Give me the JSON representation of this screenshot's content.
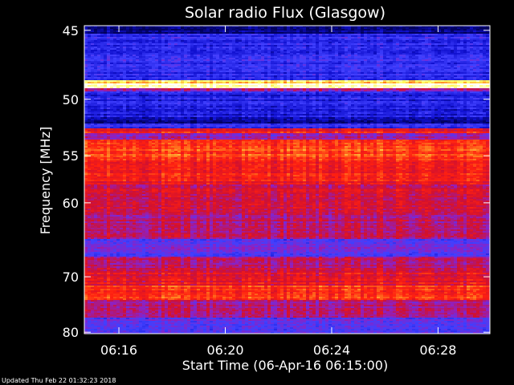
{
  "chart_data": {
    "type": "heatmap",
    "title": "Solar radio Flux (Glasgow)",
    "xlabel": "Start Time (06-Apr-16 06:15:00)",
    "ylabel": "Frequency [MHz]",
    "x_ticks": [
      "06:16",
      "06:20",
      "06:24",
      "06:28"
    ],
    "x_tick_minutes": [
      16,
      20,
      24,
      28
    ],
    "xlim_minutes": [
      14.7,
      29.95
    ],
    "y_ticks": [
      45,
      50,
      55,
      60,
      70,
      80
    ],
    "ylim": [
      44.7,
      80.3
    ],
    "y_scale": "reciprocal",
    "colormap": [
      "#00005a",
      "#1010d0",
      "#4040ff",
      "#9020c0",
      "#d01030",
      "#ff2010",
      "#ff8020",
      "#ffff60",
      "#ffffff"
    ],
    "bands": [
      {
        "from": 44.7,
        "to": 45.2,
        "level": 0.05
      },
      {
        "from": 45.2,
        "to": 48.5,
        "level": 0.2
      },
      {
        "from": 48.5,
        "to": 48.75,
        "level": 0.85
      },
      {
        "from": 48.75,
        "to": 49.1,
        "level": 0.98
      },
      {
        "from": 49.1,
        "to": 49.4,
        "level": 0.4
      },
      {
        "from": 49.4,
        "to": 50.5,
        "level": 0.18
      },
      {
        "from": 50.5,
        "to": 51.5,
        "level": 0.15
      },
      {
        "from": 51.5,
        "to": 52.0,
        "level": 0.08
      },
      {
        "from": 52.0,
        "to": 52.5,
        "level": 0.2
      },
      {
        "from": 52.5,
        "to": 52.9,
        "level": 0.58
      },
      {
        "from": 52.9,
        "to": 53.5,
        "level": 0.38
      },
      {
        "from": 53.5,
        "to": 55.5,
        "level": 0.66
      },
      {
        "from": 55.5,
        "to": 58.0,
        "level": 0.58
      },
      {
        "from": 58.0,
        "to": 61.0,
        "level": 0.5
      },
      {
        "from": 61.0,
        "to": 64.5,
        "level": 0.44
      },
      {
        "from": 64.5,
        "to": 67.0,
        "level": 0.3
      },
      {
        "from": 67.0,
        "to": 69.0,
        "level": 0.45
      },
      {
        "from": 69.0,
        "to": 71.5,
        "level": 0.55
      },
      {
        "from": 71.5,
        "to": 74.0,
        "level": 0.63
      },
      {
        "from": 74.0,
        "to": 77.0,
        "level": 0.42
      },
      {
        "from": 77.0,
        "to": 80.3,
        "level": 0.28
      }
    ]
  },
  "footer": {
    "updated": "Updated Thu Feb 22 01:32:23 2018"
  }
}
